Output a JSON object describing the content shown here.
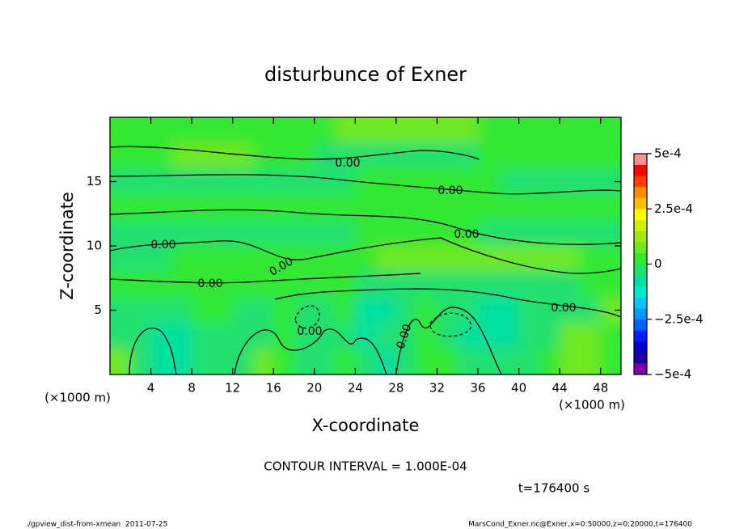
{
  "chart_data": {
    "type": "contour",
    "title": "disturbunce of Exner",
    "xlabel": "X-coordinate",
    "ylabel": "Z-coordinate",
    "xunit": "(×1000 m)",
    "yunit": "(×1000 m)",
    "x": [
      1,
      3,
      5,
      7,
      9,
      11,
      13,
      15,
      17,
      19,
      21,
      23,
      25,
      27,
      29,
      31,
      33,
      35,
      37,
      39,
      41,
      43,
      45,
      47,
      49
    ],
    "y": [
      19,
      17,
      15,
      13,
      11,
      9,
      7,
      5,
      3,
      1
    ],
    "values": [
      [
        2e-05,
        2e-05,
        2e-05,
        2e-05,
        2e-05,
        2e-05,
        2e-05,
        2e-05,
        2e-05,
        2e-05,
        2e-05,
        7e-05,
        7e-05,
        7e-05,
        7e-05,
        7e-05,
        7e-05,
        7e-05,
        2e-05,
        2e-05,
        2e-05,
        2e-05,
        2e-05,
        2e-05,
        2e-05
      ],
      [
        2e-05,
        2e-05,
        2e-05,
        7e-05,
        7e-05,
        7e-05,
        7e-05,
        2e-05,
        2e-05,
        2e-05,
        -2e-05,
        -2e-05,
        -2e-05,
        -2e-05,
        -2e-05,
        -2e-05,
        -2e-05,
        -2e-05,
        2e-05,
        2e-05,
        2e-05,
        2e-05,
        2e-05,
        2e-05,
        2e-05
      ],
      [
        -2e-05,
        -2e-05,
        -2e-05,
        -2e-05,
        -2e-05,
        -2e-05,
        -2e-05,
        -2e-05,
        -2e-05,
        -2e-05,
        -2e-05,
        -2e-05,
        2e-05,
        2e-05,
        2e-05,
        2e-05,
        2e-05,
        2e-05,
        2e-05,
        -2e-05,
        -2e-05,
        -2e-05,
        -2e-05,
        -2e-05,
        -2e-05
      ],
      [
        2e-05,
        2e-05,
        2e-05,
        2e-05,
        2e-05,
        2e-05,
        2e-05,
        2e-05,
        2e-05,
        2e-05,
        2e-05,
        2e-05,
        2e-05,
        2e-05,
        2e-05,
        2e-05,
        2e-05,
        2e-05,
        2e-05,
        2e-05,
        2e-05,
        2e-05,
        2e-05,
        2e-05,
        2e-05
      ],
      [
        -2e-05,
        -2e-05,
        -2e-05,
        -2e-05,
        -2e-05,
        -2e-05,
        -2e-05,
        -2e-05,
        -2e-05,
        -2e-05,
        -2e-05,
        -2e-05,
        2e-05,
        2e-05,
        2e-05,
        2e-05,
        2e-05,
        2e-05,
        -2e-05,
        -2e-05,
        -2e-05,
        -2e-05,
        -2e-05,
        -2e-05,
        -2e-05
      ],
      [
        -2e-05,
        -2e-05,
        -2e-05,
        2e-05,
        2e-05,
        2e-05,
        2e-05,
        2e-05,
        2e-05,
        2e-05,
        2e-05,
        2e-05,
        2e-05,
        7e-05,
        7e-05,
        7e-05,
        7e-05,
        7e-05,
        7e-05,
        7e-05,
        7e-05,
        7e-05,
        7e-05,
        2e-05,
        2e-05
      ],
      [
        2e-05,
        2e-05,
        2e-05,
        2e-05,
        2e-05,
        2e-05,
        2e-05,
        2e-05,
        2e-05,
        2e-05,
        2e-05,
        2e-05,
        -2e-05,
        -2e-05,
        -2e-05,
        -2e-05,
        -2e-05,
        -2e-05,
        -2e-05,
        -2e-05,
        -2e-05,
        -2e-05,
        -2e-05,
        2e-05,
        2e-05
      ],
      [
        -2e-05,
        -2e-05,
        -2e-05,
        -2e-05,
        2e-05,
        2e-05,
        -2e-05,
        -2e-05,
        2e-05,
        -2e-05,
        -2e-05,
        2e-05,
        -7e-05,
        -7e-05,
        -2e-05,
        2e-05,
        -2e-05,
        -2e-05,
        -7e-05,
        -7e-05,
        -2e-05,
        -2e-05,
        -2e-05,
        -2e-05,
        7e-05
      ],
      [
        -2e-05,
        -2e-05,
        -7e-05,
        -7e-05,
        -2e-05,
        -2e-05,
        -2e-05,
        -2e-05,
        2e-05,
        -2e-05,
        -2e-05,
        -2e-05,
        -7e-05,
        -2e-05,
        -2e-05,
        2e-05,
        -2e-05,
        -7e-05,
        -7e-05,
        -7e-05,
        -2e-05,
        -2e-05,
        7e-05,
        7e-05,
        2e-05
      ],
      [
        7e-05,
        -2e-05,
        -7e-05,
        -7e-05,
        -2e-05,
        -2e-05,
        -2e-05,
        7e-05,
        2e-05,
        -2e-05,
        -2e-05,
        2e-05,
        -2e-05,
        -7e-05,
        -2e-05,
        2e-05,
        2e-05,
        -2e-05,
        -2e-05,
        -2e-05,
        -2e-05,
        2e-05,
        7e-05,
        7e-05,
        2e-05
      ]
    ],
    "xlim": [
      0,
      50
    ],
    "ylim": [
      0,
      20
    ],
    "xticks": [
      4,
      8,
      12,
      16,
      20,
      24,
      28,
      32,
      36,
      40,
      44,
      48
    ],
    "yticks": [
      5,
      10,
      15
    ],
    "clim": [
      -0.0005,
      0.0005
    ],
    "cticks": [
      {
        "value": 0.0005,
        "label": "5e-4"
      },
      {
        "value": 0.00025,
        "label": "2.5e-4"
      },
      {
        "value": 0,
        "label": "0"
      },
      {
        "value": -0.00025,
        "label": "−2.5e-4"
      },
      {
        "value": -0.0005,
        "label": "−5e-4"
      }
    ],
    "colors": [
      "#8000a0",
      "#2000a0",
      "#0000c8",
      "#0020ff",
      "#0060ff",
      "#0098ff",
      "#00c8ff",
      "#00e8d0",
      "#00e0a0",
      "#20e070",
      "#33e833",
      "#70e820",
      "#a0e810",
      "#d0f000",
      "#ffff00",
      "#ffc000",
      "#ff8c00",
      "#ff4000",
      "#ff0000",
      "#ff9090"
    ],
    "contour_labels": [
      "0.00",
      "0.00",
      "0.00",
      "0.00",
      "0.00",
      "0.00",
      "0.00",
      "0.00",
      "0.00"
    ],
    "contour_interval_text": "CONTOUR INTERVAL = 1.000E-04",
    "time_label": "t=176400 s"
  },
  "footer": {
    "left": "./gpview_dist-from-xmean  2011-07-25",
    "right": "MarsCond_Exner.nc@Exner,x=0:50000,z=0:20000,t=176400"
  }
}
